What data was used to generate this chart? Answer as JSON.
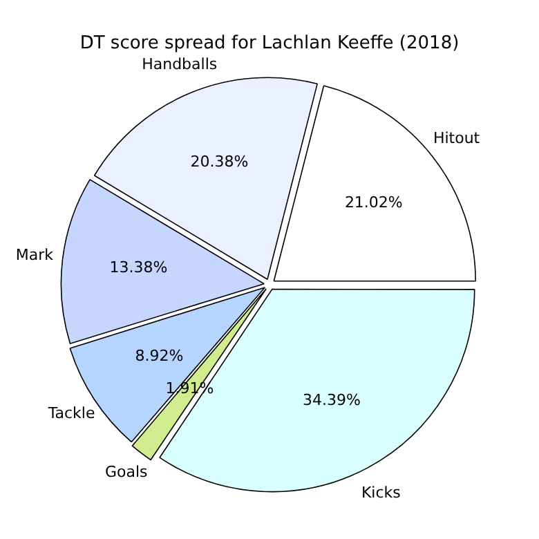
{
  "chart_data": {
    "type": "pie",
    "title": "DT score spread for Lachlan Keeffe (2018)",
    "categories": [
      "Hitout",
      "Handballs",
      "Mark",
      "Tackle",
      "Goals",
      "Kicks"
    ],
    "values": [
      21.02,
      20.38,
      13.38,
      8.92,
      1.91,
      34.39
    ],
    "value_labels": [
      "21.02%",
      "20.38%",
      "13.38%",
      "8.92%",
      "1.91%",
      "34.39%"
    ],
    "colors": [
      "#ffffff",
      "#eaf0ff",
      "#c6d6ff",
      "#b5d5ff",
      "#d0ec8c",
      "#d9ffff"
    ],
    "legend": false
  }
}
